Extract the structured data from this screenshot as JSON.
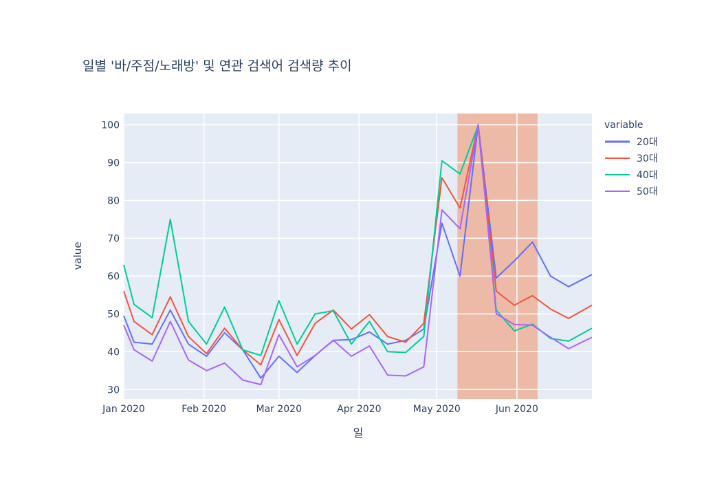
{
  "chart_data": {
    "type": "line",
    "title": "일별 '바/주점/노래방' 및 연관 검색어 검색량 추이",
    "xlabel": "일",
    "ylabel": "value",
    "legend_title": "variable",
    "legend_position": "right",
    "grid": true,
    "x_range": [
      "2020-01-01",
      "2020-06-30"
    ],
    "ylim": [
      27.5,
      103
    ],
    "y_ticks": [
      30,
      40,
      50,
      60,
      70,
      80,
      90,
      100
    ],
    "x_ticks": [
      {
        "date": "2020-01-01",
        "label": "Jan 2020"
      },
      {
        "date": "2020-02-01",
        "label": "Feb 2020"
      },
      {
        "date": "2020-03-01",
        "label": "Mar 2020"
      },
      {
        "date": "2020-04-01",
        "label": "Apr 2020"
      },
      {
        "date": "2020-05-01",
        "label": "May 2020"
      },
      {
        "date": "2020-06-01",
        "label": "Jun 2020"
      }
    ],
    "highlight_range": {
      "start": "2020-05-09",
      "end": "2020-06-09",
      "color": "#f0b19a"
    },
    "x": [
      "2020-01-01",
      "2020-01-05",
      "2020-01-12",
      "2020-01-19",
      "2020-01-26",
      "2020-02-02",
      "2020-02-09",
      "2020-02-16",
      "2020-02-23",
      "2020-03-01",
      "2020-03-08",
      "2020-03-15",
      "2020-03-22",
      "2020-03-29",
      "2020-04-05",
      "2020-04-12",
      "2020-04-19",
      "2020-04-26",
      "2020-05-03",
      "2020-05-10",
      "2020-05-17",
      "2020-05-24",
      "2020-05-31",
      "2020-06-07",
      "2020-06-14",
      "2020-06-21",
      "2020-06-30"
    ],
    "series": [
      {
        "name": "20대",
        "color": "#636efa",
        "values": [
          49.5,
          42.5,
          42,
          51,
          42,
          38.8,
          45,
          40.5,
          33,
          38.8,
          34.5,
          39,
          43,
          43.2,
          45.2,
          42,
          43,
          46,
          74,
          60,
          100,
          59.5,
          64,
          69,
          60,
          57.2,
          60.4
        ]
      },
      {
        "name": "30대",
        "color": "#ef553b",
        "values": [
          56,
          48,
          44.5,
          54.5,
          44,
          39.5,
          46.2,
          40.5,
          36.5,
          48.5,
          39,
          47.5,
          51,
          46,
          49.8,
          44,
          42.5,
          47.5,
          86,
          78,
          100,
          56,
          52.3,
          54.8,
          51.3,
          48.8,
          52.3
        ]
      },
      {
        "name": "40대",
        "color": "#00cc96",
        "values": [
          63,
          52.5,
          49,
          75,
          48,
          42,
          51.8,
          40.5,
          39,
          53.5,
          42,
          50,
          50.8,
          42,
          48,
          40,
          39.8,
          44,
          90.5,
          87,
          99.8,
          51,
          45.5,
          47.3,
          43.5,
          42.8,
          46.2
        ]
      },
      {
        "name": "50대",
        "color": "#ab63fa",
        "values": [
          47,
          40.5,
          37.5,
          48,
          37.8,
          35,
          37,
          32.5,
          31.3,
          44.5,
          36,
          39,
          43,
          38.8,
          41.5,
          33.8,
          33.6,
          36,
          77.5,
          72.5,
          100,
          50,
          47.2,
          47,
          43.8,
          40.8,
          43.8
        ]
      }
    ]
  }
}
